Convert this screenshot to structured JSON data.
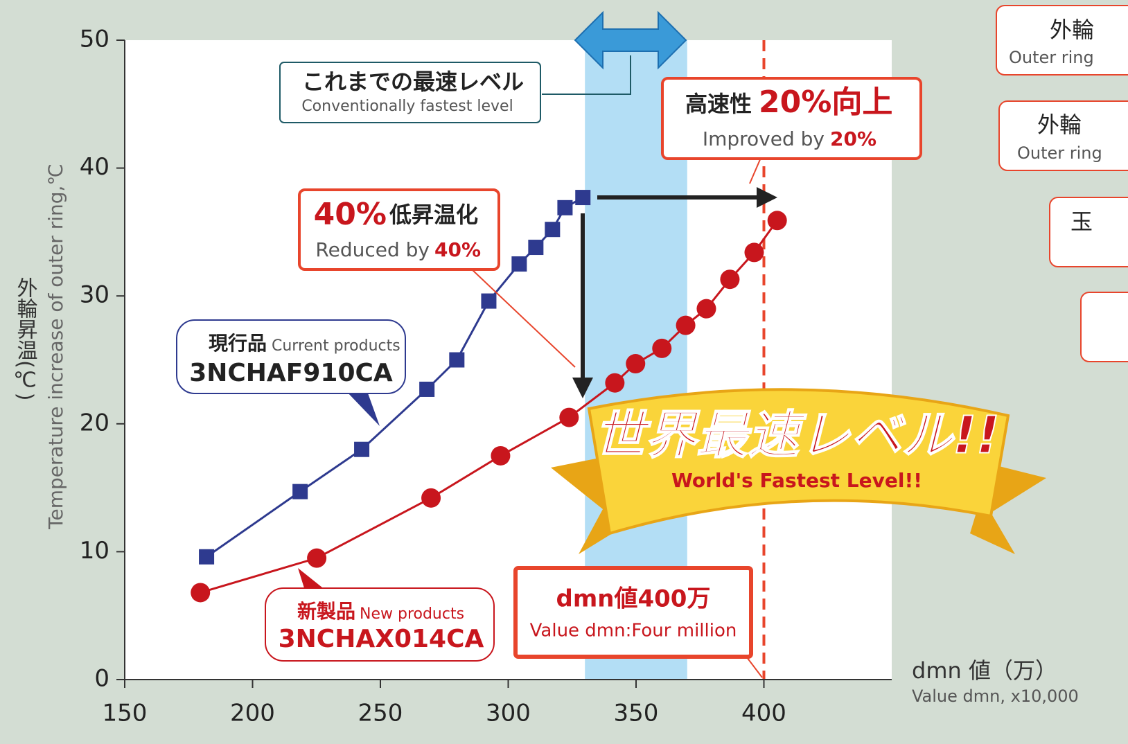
{
  "chart_data": {
    "type": "line",
    "y_label": "外輪昇温(℃)",
    "y_label_en": "Temperature increase of outer ring,℃",
    "x_label": "dmn 値（万）",
    "x_label_en": "Value dmn, x10,000",
    "xlim": [
      150,
      450
    ],
    "xticks": [
      150,
      200,
      250,
      300,
      350,
      400
    ],
    "ylim": [
      0,
      50
    ],
    "yticks": [
      0,
      10,
      20,
      30,
      40,
      50
    ],
    "highlight_band": [
      330,
      370
    ],
    "highlight_color": "#b3def5",
    "reference_line": 400,
    "series": [
      {
        "name": "3NCHAF910CA",
        "color": "#2e3a8f",
        "marker": "square",
        "x": [
          182,
          218.6,
          242.7,
          268.2,
          279.9,
          292.4,
          304.3,
          310.8,
          317.3,
          322.2,
          329.2
        ],
        "values": [
          9.6,
          14.7,
          18.0,
          22.7,
          25.0,
          29.6,
          32.5,
          33.8,
          35.2,
          36.9,
          37.7
        ]
      },
      {
        "name": "3NCHAX014CA",
        "color": "#c8161d",
        "marker": "circle",
        "x": [
          179.6,
          225.1,
          269.8,
          297,
          323.8,
          341.7,
          349.8,
          360.1,
          369.4,
          377.5,
          386.7,
          396.2,
          405.2
        ],
        "values": [
          6.8,
          9.5,
          14.2,
          17.5,
          20.5,
          23.2,
          24.7,
          25.9,
          27.7,
          29.0,
          31.3,
          33.4,
          35.9
        ]
      }
    ],
    "annotations": {
      "conventional": [
        "これまでの最速レベル",
        "Conventionally fastest level"
      ],
      "speed": [
        "高速性",
        "20%向上",
        "Improved by",
        "20%"
      ],
      "reduced": [
        "40%",
        "低昇温化",
        "Reduced by",
        "40%"
      ],
      "current": [
        "現行品",
        "Current products"
      ],
      "new": [
        "新製品",
        "New products"
      ],
      "dmn": [
        "dmn値400万",
        "Value dmn:Four million"
      ],
      "banner": [
        "世界最速レベル!!",
        "World's Fastest Level!!"
      ]
    },
    "side_labels": [
      "外輪",
      "Outer ring",
      "外輪",
      "Outer ring",
      "玉"
    ]
  }
}
